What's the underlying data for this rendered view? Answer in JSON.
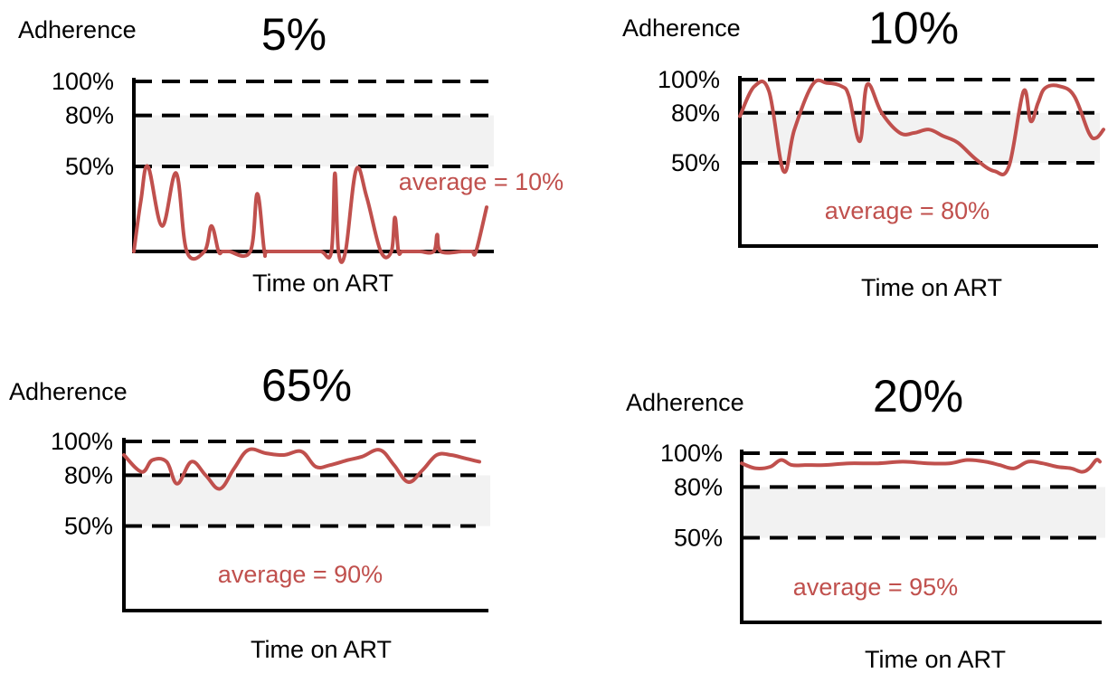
{
  "colors": {
    "line": "#c0504d",
    "band": "#f2f2f2",
    "axis": "#000000",
    "text": "#000000",
    "average_text": "#c0504d"
  },
  "chart_data": [
    {
      "type": "line",
      "title": "5%",
      "ylabel": "Adherence",
      "xlabel": "Time on ART",
      "yticks": [
        "100%",
        "80%",
        "50%"
      ],
      "ylim": [
        0,
        100
      ],
      "reference_lines": [
        100,
        80,
        50
      ],
      "shaded_band": [
        50,
        80
      ],
      "annotation": "average = 10%",
      "series": [
        {
          "x": [
            0,
            2,
            4,
            8,
            12,
            15,
            20,
            22,
            24,
            25,
            26,
            27,
            33,
            35,
            37,
            38,
            45,
            48,
            53,
            56,
            57,
            58,
            60,
            63,
            66,
            70,
            73,
            74,
            75,
            76,
            78,
            81,
            85,
            86,
            87,
            93,
            94,
            95,
            96,
            97,
            100
          ],
          "y": [
            0,
            30,
            50,
            15,
            46,
            0,
            0,
            15,
            0,
            0,
            0,
            0,
            0,
            34,
            0,
            0,
            0,
            0,
            0,
            0,
            46,
            0,
            0,
            48,
            32,
            0,
            0,
            20,
            0,
            0,
            0,
            0,
            0,
            10,
            0,
            0,
            0,
            0,
            0,
            0,
            26
          ]
        }
      ]
    },
    {
      "type": "line",
      "title": "10%",
      "ylabel": "Adherence",
      "xlabel": "Time on ART",
      "yticks": [
        "100%",
        "80%",
        "50%"
      ],
      "ylim": [
        0,
        100
      ],
      "reference_lines": [
        100,
        80,
        50
      ],
      "shaded_band": [
        50,
        80
      ],
      "annotation": "average = 80%",
      "series": [
        {
          "x": [
            0,
            4,
            8,
            12,
            15,
            20,
            24,
            28,
            30,
            33,
            35,
            39,
            44,
            48,
            52,
            56,
            60,
            65,
            70,
            74,
            78,
            80,
            82,
            84,
            88,
            92,
            96,
            98,
            100
          ],
          "y": [
            78,
            96,
            93,
            45,
            70,
            97,
            98,
            96,
            90,
            63,
            97,
            80,
            68,
            68,
            70,
            66,
            62,
            52,
            45,
            48,
            93,
            75,
            86,
            95,
            96,
            90,
            68,
            65,
            70
          ]
        }
      ]
    },
    {
      "type": "line",
      "title": "65%",
      "ylabel": "Adherence",
      "xlabel": "Time on ART",
      "yticks": [
        "100%",
        "80%",
        "50%"
      ],
      "ylim": [
        0,
        100
      ],
      "reference_lines": [
        100,
        80,
        50
      ],
      "shaded_band": [
        50,
        80
      ],
      "annotation": "average = 90%",
      "series": [
        {
          "x": [
            0,
            5,
            8,
            12,
            15,
            19,
            23,
            27,
            31,
            35,
            40,
            45,
            50,
            54,
            58,
            63,
            67,
            72,
            76,
            80,
            84,
            88,
            92,
            96,
            100
          ],
          "y": [
            92,
            82,
            89,
            88,
            75,
            88,
            80,
            72,
            84,
            95,
            93,
            92,
            94,
            85,
            86,
            89,
            91,
            95,
            86,
            76,
            83,
            92,
            92,
            90,
            88
          ]
        }
      ]
    },
    {
      "type": "line",
      "title": "20%",
      "ylabel": "Adherence",
      "xlabel": "Time on ART",
      "yticks": [
        "100%",
        "80%",
        "50%"
      ],
      "ylim": [
        0,
        100
      ],
      "reference_lines": [
        100,
        80,
        50
      ],
      "shaded_band": [
        50,
        80
      ],
      "annotation": "average = 95%",
      "series": [
        {
          "x": [
            0,
            4,
            8,
            11,
            14,
            18,
            23,
            30,
            38,
            45,
            52,
            58,
            63,
            68,
            72,
            76,
            80,
            84,
            88,
            92,
            95,
            97,
            99,
            100
          ],
          "y": [
            94,
            91,
            92,
            96,
            93,
            93,
            93,
            94,
            94,
            95,
            94,
            94,
            96,
            95,
            93,
            91,
            95,
            94,
            92,
            91,
            89,
            91,
            96,
            95
          ]
        }
      ]
    }
  ]
}
